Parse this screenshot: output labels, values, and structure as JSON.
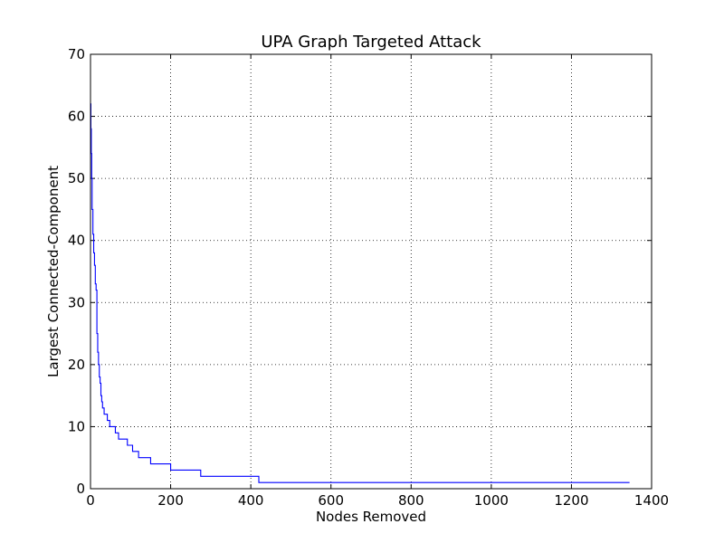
{
  "chart_data": {
    "type": "line",
    "title": "UPA Graph Targeted Attack",
    "xlabel": "Nodes Removed",
    "ylabel": "Largest Connected-Component",
    "xlim": [
      0,
      1400
    ],
    "ylim": [
      0,
      70
    ],
    "xticks": [
      0,
      200,
      400,
      600,
      800,
      1000,
      1200,
      1400
    ],
    "yticks": [
      0,
      10,
      20,
      30,
      40,
      50,
      60,
      70
    ],
    "xtick_labels": [
      "0",
      "200",
      "400",
      "600",
      "800",
      "1000",
      "1200",
      "1400"
    ],
    "ytick_labels": [
      "0",
      "10",
      "20",
      "30",
      "40",
      "50",
      "60",
      "70"
    ],
    "grid": true,
    "legend": "none",
    "series": [
      {
        "color": "#0000ff",
        "step": true,
        "x": [
          0,
          1,
          2,
          3,
          4,
          6,
          8,
          10,
          12,
          14,
          16,
          18,
          20,
          22,
          24,
          26,
          28,
          30,
          34,
          38,
          42,
          48,
          55,
          62,
          70,
          80,
          92,
          105,
          120,
          150,
          200,
          275,
          420,
          1345
        ],
        "y": [
          62,
          58,
          54,
          50,
          45,
          41,
          38,
          36,
          33,
          32,
          25,
          22,
          20,
          18,
          17,
          15,
          14,
          13,
          12,
          12,
          11,
          10,
          10,
          9,
          8,
          8,
          7,
          6,
          5,
          4,
          3,
          2,
          1,
          1
        ]
      }
    ]
  }
}
